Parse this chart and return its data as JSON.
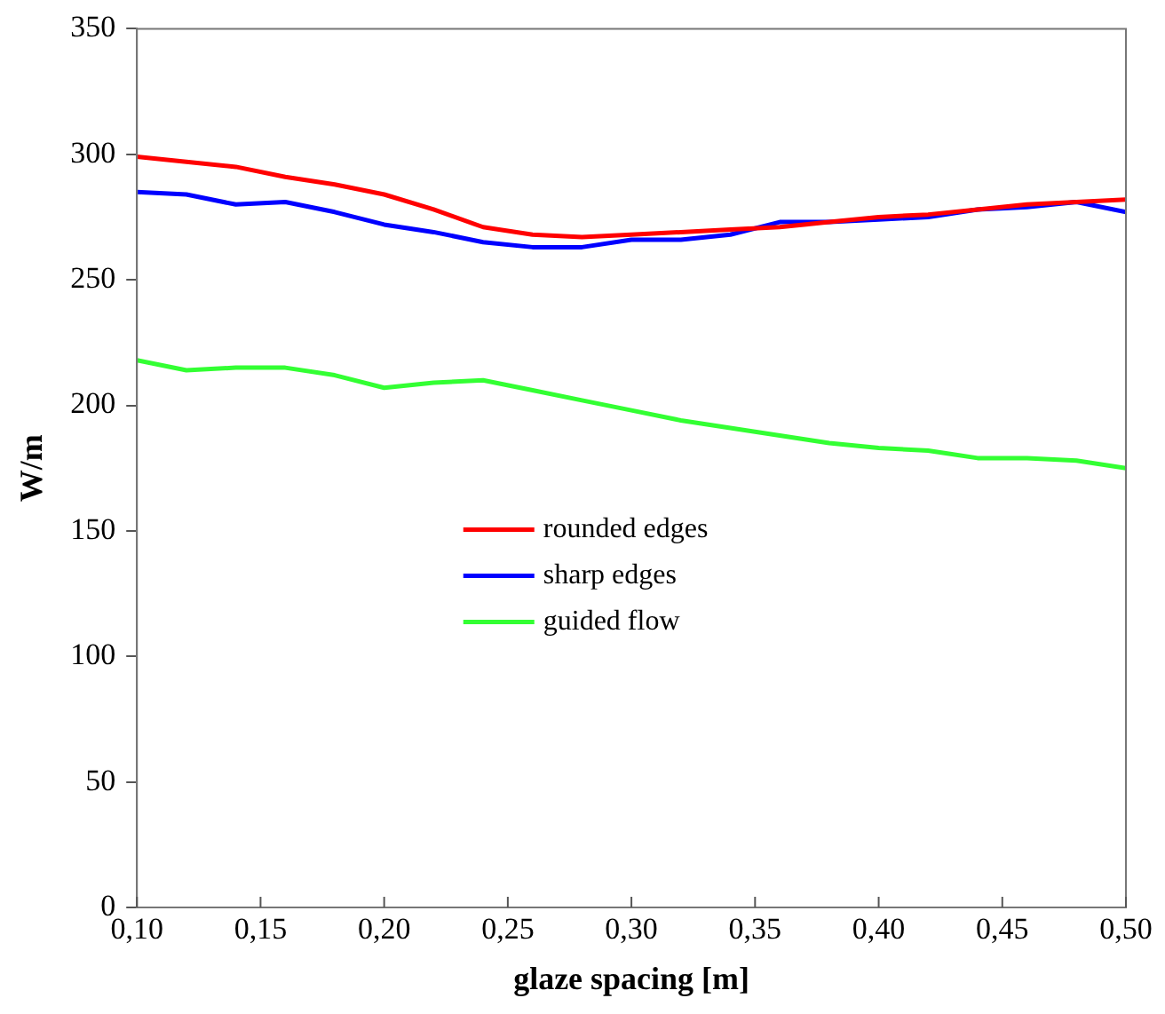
{
  "chart_data": {
    "type": "line",
    "xlabel": "glaze spacing [m]",
    "ylabel": "W/m",
    "x": [
      0.1,
      0.12,
      0.14,
      0.16,
      0.18,
      0.2,
      0.22,
      0.24,
      0.26,
      0.28,
      0.3,
      0.32,
      0.34,
      0.36,
      0.38,
      0.4,
      0.42,
      0.44,
      0.46,
      0.48,
      0.5
    ],
    "series": [
      {
        "name": "rounded edges",
        "color": "#ff0000",
        "values": [
          299,
          297,
          295,
          291,
          288,
          284,
          278,
          271,
          268,
          267,
          268,
          269,
          270,
          271,
          273,
          275,
          276,
          278,
          280,
          281,
          282
        ]
      },
      {
        "name": "sharp edges",
        "color": "#0000ff",
        "values": [
          285,
          284,
          280,
          281,
          277,
          272,
          269,
          265,
          263,
          263,
          266,
          266,
          268,
          273,
          273,
          274,
          275,
          278,
          279,
          281,
          277
        ]
      },
      {
        "name": "guided flow",
        "color": "#33ff33",
        "values": [
          218,
          214,
          215,
          215,
          212,
          207,
          209,
          210,
          206,
          202,
          198,
          194,
          191,
          188,
          185,
          183,
          182,
          179,
          179,
          178,
          175
        ]
      }
    ],
    "xlim": [
      0.1,
      0.5
    ],
    "xticks": [
      {
        "value": 0.1,
        "label": "0,10"
      },
      {
        "value": 0.15,
        "label": "0,15"
      },
      {
        "value": 0.2,
        "label": "0,20"
      },
      {
        "value": 0.25,
        "label": "0,25"
      },
      {
        "value": 0.3,
        "label": "0,30"
      },
      {
        "value": 0.35,
        "label": "0,35"
      },
      {
        "value": 0.4,
        "label": "0,40"
      },
      {
        "value": 0.45,
        "label": "0,45"
      },
      {
        "value": 0.5,
        "label": "0,50"
      }
    ],
    "ylim": [
      0,
      350
    ],
    "yticks": [
      0,
      50,
      100,
      150,
      200,
      250,
      300,
      350
    ],
    "grid": false,
    "legend": "center",
    "marker": "none",
    "line_style": "solid"
  }
}
